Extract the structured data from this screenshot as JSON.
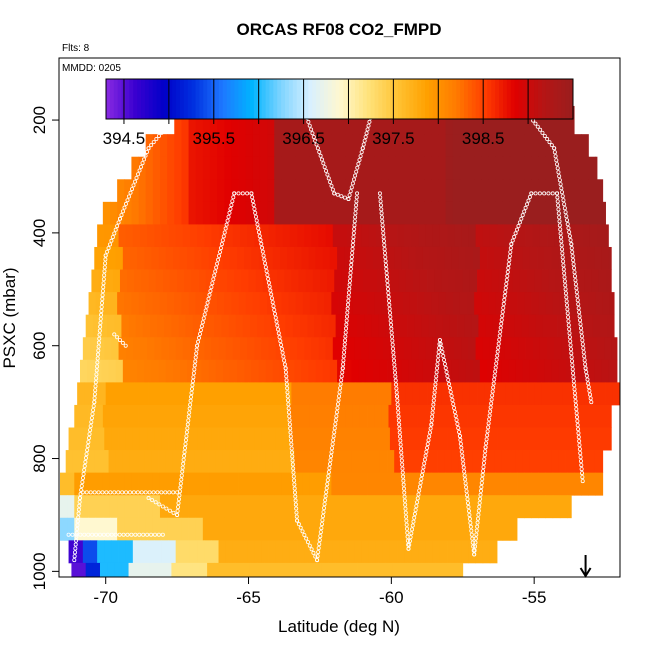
{
  "chart_data": {
    "type": "heatmap",
    "title": "ORCAS RF08 CO2_FMPD",
    "top_note": "Flts: 8",
    "date_note": "MMDD: 0205",
    "xlabel": "Latitude (deg N)",
    "ylabel": "PSXC (mbar)",
    "x_ticks": [
      "-70",
      "-65",
      "-60",
      "-55"
    ],
    "x_tick_values": [
      -70,
      -65,
      -60,
      -55
    ],
    "y_ticks": [
      "200",
      "400",
      "600",
      "800",
      "1000"
    ],
    "y_tick_values": [
      200,
      400,
      600,
      800,
      1000
    ],
    "xlim": [
      -71.6,
      -52.1
    ],
    "ylim": [
      1010,
      90
    ],
    "y_reversed": true,
    "colorbar": {
      "ticks": [
        "394.5",
        "395.5",
        "396.5",
        "397.5",
        "398.5"
      ],
      "tick_values": [
        394.5,
        395.5,
        396.5,
        397.5,
        398.5
      ],
      "range": [
        394.3,
        399.5
      ],
      "colors": [
        "#8a2be2",
        "#3a00d0",
        "#0000c8",
        "#0030e0",
        "#1e78ff",
        "#00b4ff",
        "#7fd4ff",
        "#d8f0ff",
        "#fff8d0",
        "#ffe27a",
        "#ffc232",
        "#ffa000",
        "#ff7a00",
        "#ff3c00",
        "#e00000",
        "#b51515",
        "#9a1e1e"
      ]
    },
    "arrow_marker": {
      "x": -53.2,
      "direction": "down"
    },
    "z_grid": {
      "pressure_bands": [
        190,
        230,
        270,
        310,
        350,
        390,
        430,
        470,
        510,
        550,
        590,
        630,
        670,
        710,
        750,
        790,
        830,
        870,
        910,
        950,
        990
      ],
      "rows": [
        {
          "p_top": 175,
          "p_bot": 225,
          "x_from": -67.6,
          "x_to": -53.6,
          "kind": "upper"
        },
        {
          "p_top": 225,
          "p_bot": 265,
          "x_from": -68.6,
          "x_to": -53.1,
          "kind": "upper"
        },
        {
          "p_top": 265,
          "p_bot": 305,
          "x_from": -69.1,
          "x_to": -52.8,
          "kind": "upper"
        },
        {
          "p_top": 305,
          "p_bot": 345,
          "x_from": -69.6,
          "x_to": -52.6,
          "kind": "upper"
        },
        {
          "p_top": 345,
          "p_bot": 385,
          "x_from": -70.1,
          "x_to": -52.5,
          "kind": "upper"
        },
        {
          "p_top": 385,
          "p_bot": 425,
          "x_from": -70.3,
          "x_to": -52.4,
          "kind": "mid"
        },
        {
          "p_top": 425,
          "p_bot": 465,
          "x_from": -70.4,
          "x_to": -52.3,
          "kind": "mid"
        },
        {
          "p_top": 465,
          "p_bot": 505,
          "x_from": -70.5,
          "x_to": -52.3,
          "kind": "mid"
        },
        {
          "p_top": 505,
          "p_bot": 545,
          "x_from": -70.6,
          "x_to": -52.2,
          "kind": "mid"
        },
        {
          "p_top": 545,
          "p_bot": 585,
          "x_from": -70.7,
          "x_to": -52.2,
          "kind": "mid"
        },
        {
          "p_top": 585,
          "p_bot": 625,
          "x_from": -70.8,
          "x_to": -52.1,
          "kind": "mid"
        },
        {
          "p_top": 625,
          "p_bot": 665,
          "x_from": -70.9,
          "x_to": -52.1,
          "kind": "mid"
        },
        {
          "p_top": 665,
          "p_bot": 705,
          "x_from": -71.0,
          "x_to": -52.0,
          "kind": "low"
        },
        {
          "p_top": 705,
          "p_bot": 745,
          "x_from": -71.1,
          "x_to": -52.3,
          "kind": "low"
        },
        {
          "p_top": 745,
          "p_bot": 785,
          "x_from": -71.3,
          "x_to": -52.3,
          "kind": "low"
        },
        {
          "p_top": 785,
          "p_bot": 825,
          "x_from": -71.4,
          "x_to": -52.6,
          "kind": "low"
        },
        {
          "p_top": 825,
          "p_bot": 865,
          "x_from": -71.6,
          "x_to": -52.6,
          "kind": "bl1"
        },
        {
          "p_top": 865,
          "p_bot": 905,
          "x_from": -71.6,
          "x_to": -53.7,
          "kind": "bl2"
        },
        {
          "p_top": 905,
          "p_bot": 945,
          "x_from": -71.6,
          "x_to": -55.6,
          "kind": "bl3"
        },
        {
          "p_top": 945,
          "p_bot": 985,
          "x_from": -71.3,
          "x_to": -56.3,
          "kind": "bl4"
        },
        {
          "p_top": 985,
          "p_bot": 1010,
          "x_from": -71.2,
          "x_to": -57.5,
          "kind": "bl5"
        }
      ]
    },
    "flight_track": {
      "segments": [
        {
          "from": [
            -71.1,
            980
          ],
          "to": [
            -70.9,
            870
          ]
        },
        {
          "from": [
            -70.9,
            870
          ],
          "to": [
            -70.4,
            700
          ]
        },
        {
          "from": [
            -70.4,
            700
          ],
          "to": [
            -70.0,
            440
          ]
        },
        {
          "from": [
            -70.0,
            440
          ],
          "to": [
            -69.5,
            375
          ]
        },
        {
          "from": [
            -69.5,
            375
          ],
          "to": [
            -68.5,
            250
          ]
        },
        {
          "from": [
            -68.5,
            250
          ],
          "to": [
            -67.5,
            190
          ]
        },
        {
          "from": [
            -67.5,
            190
          ],
          "to": [
            -63.0,
            190
          ]
        },
        {
          "from": [
            -63.0,
            190
          ],
          "to": [
            -62.0,
            330
          ]
        },
        {
          "from": [
            -62.0,
            330
          ],
          "to": [
            -61.5,
            340
          ]
        },
        {
          "from": [
            -61.5,
            340
          ],
          "to": [
            -61.0,
            250
          ]
        },
        {
          "from": [
            -61.0,
            250
          ],
          "to": [
            -60.7,
            190
          ]
        },
        {
          "from": [
            -60.7,
            190
          ],
          "to": [
            -55.2,
            190
          ]
        },
        {
          "from": [
            -55.2,
            190
          ],
          "to": [
            -54.3,
            250
          ]
        },
        {
          "from": [
            -54.3,
            250
          ],
          "to": [
            -53.7,
            420
          ]
        },
        {
          "from": [
            -53.7,
            420
          ],
          "to": [
            -53.2,
            640
          ]
        },
        {
          "from": [
            -53.2,
            640
          ],
          "to": [
            -53.0,
            700
          ]
        },
        {
          "from": [
            -69.7,
            580
          ],
          "to": [
            -69.3,
            600
          ]
        },
        {
          "from": [
            -68.5,
            870
          ],
          "to": [
            -67.5,
            900
          ]
        },
        {
          "from": [
            -67.5,
            900
          ],
          "to": [
            -66.8,
            600
          ]
        },
        {
          "from": [
            -66.8,
            600
          ],
          "to": [
            -65.5,
            330
          ]
        },
        {
          "from": [
            -65.5,
            330
          ],
          "to": [
            -64.9,
            330
          ]
        },
        {
          "from": [
            -64.9,
            330
          ],
          "to": [
            -63.7,
            640
          ]
        },
        {
          "from": [
            -63.7,
            640
          ],
          "to": [
            -63.3,
            910
          ]
        },
        {
          "from": [
            -63.3,
            910
          ],
          "to": [
            -62.6,
            980
          ]
        },
        {
          "from": [
            -62.6,
            980
          ],
          "to": [
            -61.7,
            640
          ]
        },
        {
          "from": [
            -61.7,
            640
          ],
          "to": [
            -61.2,
            330
          ]
        },
        {
          "from": [
            -60.4,
            330
          ],
          "to": [
            -59.8,
            690
          ]
        },
        {
          "from": [
            -59.8,
            690
          ],
          "to": [
            -59.4,
            960
          ]
        },
        {
          "from": [
            -59.4,
            960
          ],
          "to": [
            -58.6,
            740
          ]
        },
        {
          "from": [
            -58.6,
            740
          ],
          "to": [
            -58.3,
            590
          ]
        },
        {
          "from": [
            -58.3,
            590
          ],
          "to": [
            -57.6,
            760
          ]
        },
        {
          "from": [
            -57.6,
            760
          ],
          "to": [
            -57.1,
            970
          ]
        },
        {
          "from": [
            -57.1,
            970
          ],
          "to": [
            -56.7,
            780
          ]
        },
        {
          "from": [
            -56.7,
            780
          ],
          "to": [
            -55.8,
            420
          ]
        },
        {
          "from": [
            -55.8,
            420
          ],
          "to": [
            -55.1,
            330
          ]
        },
        {
          "from": [
            -55.1,
            330
          ],
          "to": [
            -54.2,
            330
          ]
        },
        {
          "from": [
            -54.2,
            330
          ],
          "to": [
            -53.3,
            840
          ]
        },
        {
          "from": [
            -71.3,
            935
          ],
          "to": [
            -68.0,
            935
          ]
        },
        {
          "from": [
            -70.8,
            860
          ],
          "to": [
            -67.5,
            860
          ]
        }
      ]
    }
  }
}
